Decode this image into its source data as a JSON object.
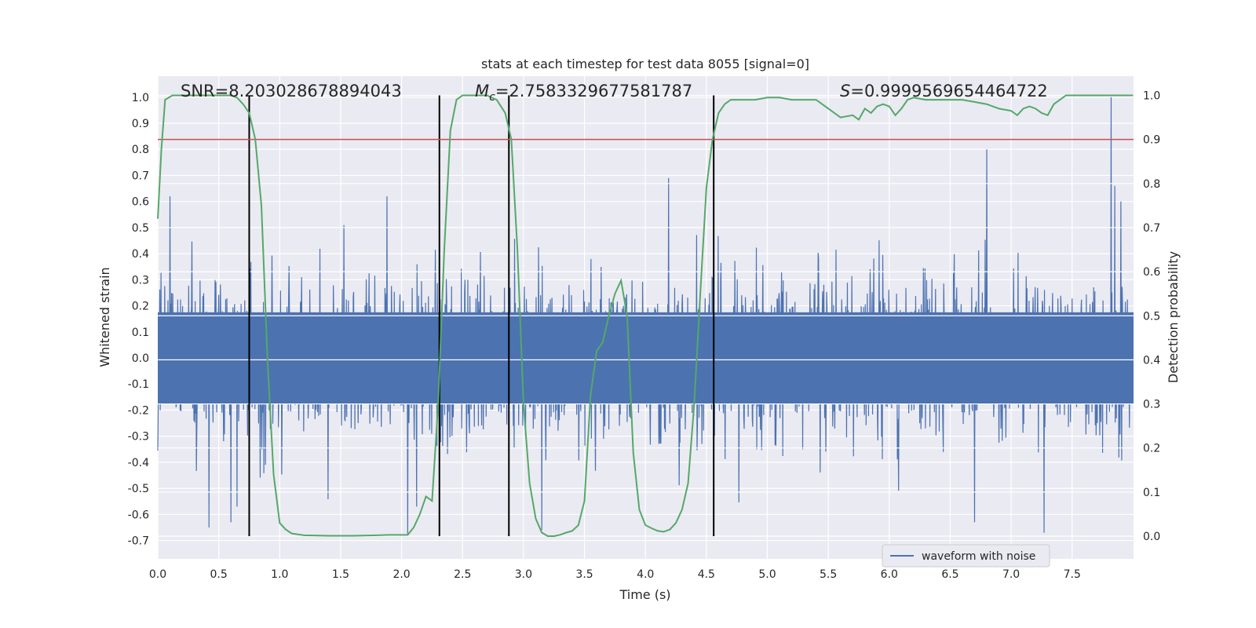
{
  "chart_data": {
    "type": "line",
    "title": "stats at each timestep for test data 8055 [signal=0]",
    "xlabel": "Time (s)",
    "ylabel": "Whitened strain",
    "y2label": "Detection probability",
    "xlim": [
      0,
      8.0
    ],
    "ylim": [
      -0.75,
      1.08
    ],
    "y2lim": [
      -0.025,
      1.045
    ],
    "xticks": [
      "0.0",
      "0.5",
      "1.0",
      "1.5",
      "2.0",
      "2.5",
      "3.0",
      "3.5",
      "4.0",
      "4.5",
      "5.0",
      "5.5",
      "6.0",
      "6.5",
      "7.0",
      "7.5"
    ],
    "yticks": [
      "-0.7",
      "-0.6",
      "-0.5",
      "-0.4",
      "-0.3",
      "-0.2",
      "-0.1",
      "0.0",
      "0.1",
      "0.2",
      "0.3",
      "0.4",
      "0.5",
      "0.6",
      "0.7",
      "0.8",
      "0.9",
      "1.0"
    ],
    "y2ticks": [
      "0.0",
      "0.1",
      "0.2",
      "0.3",
      "0.4",
      "0.5",
      "0.6",
      "0.7",
      "0.8",
      "0.9",
      "1.0"
    ],
    "annotations": {
      "snr": "SNR=8.203028678894043",
      "mc_symbol": "M",
      "mc_sub": "c",
      "mc_value": "=2.7583329677581787",
      "s_symbol": "S",
      "s_value": "=0.9999569654464722"
    },
    "legend": {
      "entries": [
        "waveform with noise"
      ],
      "placement": "lower-right"
    },
    "threshold": 0.9,
    "vertical_lines": [
      0.75,
      2.31,
      2.88,
      4.56
    ],
    "waveform": {
      "name": "waveform with noise",
      "duration": 8.0,
      "samples": 2400,
      "envelope": 0.155,
      "spikes": [
        {
          "t": 0.1,
          "v": 0.62
        },
        {
          "t": 0.42,
          "v": -0.65
        },
        {
          "t": 0.6,
          "v": -0.63
        },
        {
          "t": 1.88,
          "v": 0.62
        },
        {
          "t": 2.05,
          "v": -0.68
        },
        {
          "t": 3.15,
          "v": -0.66
        },
        {
          "t": 4.19,
          "v": 0.69
        },
        {
          "t": 6.8,
          "v": 0.8
        },
        {
          "t": 6.7,
          "v": -0.63
        },
        {
          "t": 7.27,
          "v": -0.67
        },
        {
          "t": 7.82,
          "v": 1.0
        },
        {
          "t": 7.85,
          "v": 0.66
        },
        {
          "t": 7.9,
          "v": 0.6
        }
      ]
    },
    "detection_probability": {
      "x": [
        0.0,
        0.03,
        0.06,
        0.12,
        0.2,
        0.6,
        0.65,
        0.7,
        0.75,
        0.8,
        0.85,
        0.9,
        0.95,
        1.0,
        1.05,
        1.1,
        1.2,
        1.4,
        1.6,
        1.8,
        1.9,
        2.0,
        2.05,
        2.1,
        2.15,
        2.2,
        2.25,
        2.3,
        2.35,
        2.4,
        2.45,
        2.5,
        2.6,
        2.7,
        2.78,
        2.85,
        2.9,
        2.95,
        3.0,
        3.05,
        3.1,
        3.15,
        3.2,
        3.25,
        3.3,
        3.35,
        3.4,
        3.45,
        3.5,
        3.55,
        3.6,
        3.65,
        3.7,
        3.75,
        3.8,
        3.85,
        3.9,
        3.95,
        4.0,
        4.05,
        4.1,
        4.15,
        4.2,
        4.25,
        4.3,
        4.35,
        4.4,
        4.45,
        4.5,
        4.55,
        4.6,
        4.65,
        4.7,
        4.8,
        4.9,
        5.0,
        5.1,
        5.2,
        5.3,
        5.4,
        5.5,
        5.6,
        5.7,
        5.75,
        5.8,
        5.85,
        5.9,
        5.95,
        6.0,
        6.05,
        6.1,
        6.15,
        6.2,
        6.3,
        6.4,
        6.5,
        6.6,
        6.7,
        6.8,
        6.9,
        7.0,
        7.05,
        7.1,
        7.15,
        7.2,
        7.25,
        7.3,
        7.35,
        7.4,
        7.45,
        7.5,
        7.6,
        7.7,
        7.8,
        7.9,
        8.0
      ],
      "y": [
        0.72,
        0.88,
        0.99,
        1.0,
        1.0,
        1.0,
        0.995,
        0.98,
        0.96,
        0.9,
        0.75,
        0.4,
        0.14,
        0.03,
        0.015,
        0.006,
        0.002,
        0.001,
        0.001,
        0.002,
        0.003,
        0.003,
        0.003,
        0.02,
        0.05,
        0.09,
        0.08,
        0.3,
        0.65,
        0.92,
        0.99,
        1.0,
        1.0,
        1.0,
        0.99,
        0.96,
        0.9,
        0.65,
        0.3,
        0.12,
        0.04,
        0.008,
        0.0,
        0.0,
        0.003,
        0.008,
        0.012,
        0.025,
        0.08,
        0.32,
        0.42,
        0.44,
        0.5,
        0.55,
        0.58,
        0.5,
        0.19,
        0.06,
        0.025,
        0.018,
        0.012,
        0.01,
        0.015,
        0.03,
        0.06,
        0.12,
        0.3,
        0.55,
        0.79,
        0.9,
        0.96,
        0.98,
        0.99,
        0.99,
        0.99,
        0.995,
        0.995,
        0.99,
        0.99,
        0.99,
        0.97,
        0.95,
        0.955,
        0.945,
        0.97,
        0.96,
        0.975,
        0.98,
        0.975,
        0.955,
        0.97,
        0.99,
        0.995,
        0.99,
        0.99,
        0.99,
        0.99,
        0.985,
        0.98,
        0.97,
        0.965,
        0.955,
        0.97,
        0.975,
        0.97,
        0.96,
        0.955,
        0.98,
        0.99,
        1.0,
        1.0,
        1.0,
        1.0,
        1.0,
        1.0,
        1.0
      ]
    },
    "colors": {
      "background": "#eaeaf2",
      "grid": "#ffffff",
      "waveform": "#4c72b0",
      "probability": "#55a868",
      "threshold": "#c44e52",
      "markers": "#000000",
      "text": "#262626"
    }
  }
}
